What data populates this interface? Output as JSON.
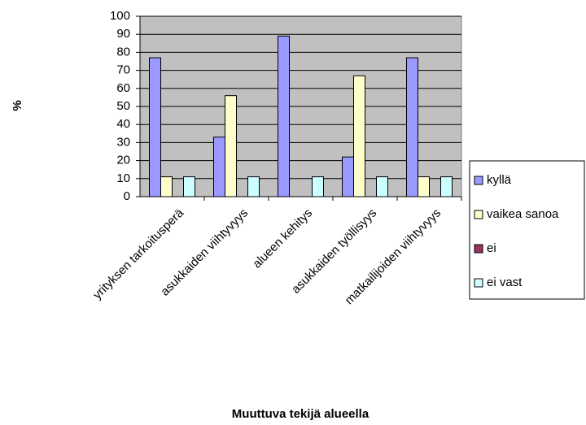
{
  "chart_data": {
    "type": "bar",
    "x_label": "Muuttuva tekijä alueella",
    "y_label": "%",
    "categories": [
      "yrityksen tarkoitusperä",
      "asukkaiden viihtyvyys",
      "alueen kehitys",
      "asukkaiden työllisyys",
      "matkailijoiden viihtyvyys"
    ],
    "series": [
      {
        "name": "kyllä",
        "color": "#9999ff",
        "values": [
          77,
          33,
          89,
          22,
          77
        ]
      },
      {
        "name": "vaikea sanoa",
        "color": "#ffffcc",
        "values": [
          11,
          56,
          0,
          67,
          11
        ]
      },
      {
        "name": "ei",
        "color": "#993366",
        "values": [
          0,
          0,
          0,
          0,
          0
        ]
      },
      {
        "name": "ei vast",
        "color": "#ccffff",
        "values": [
          11,
          11,
          11,
          11,
          11
        ]
      }
    ],
    "ylim": [
      0,
      100
    ],
    "yticks": [
      0,
      10,
      20,
      30,
      40,
      50,
      60,
      70,
      80,
      90,
      100
    ],
    "grid": true,
    "legend": "right"
  }
}
